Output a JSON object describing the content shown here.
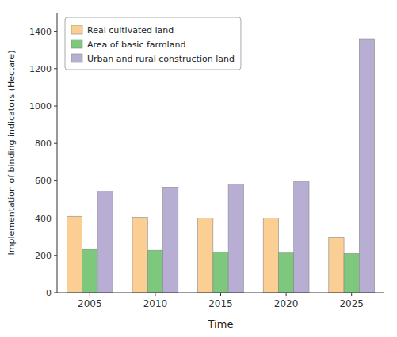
{
  "chart_data": {
    "type": "bar",
    "categories": [
      "2005",
      "2010",
      "2015",
      "2020",
      "2025"
    ],
    "series": [
      {
        "name": "Real cultivated land",
        "color": "#FBCF93",
        "values": [
          410,
          405,
          400,
          400,
          295
        ]
      },
      {
        "name": "Area of basic farmland",
        "color": "#7DC87D",
        "values": [
          232,
          228,
          218,
          213,
          210
        ]
      },
      {
        "name": "Urban and rural construction land",
        "color": "#B8AED4",
        "values": [
          545,
          562,
          583,
          595,
          1360
        ]
      }
    ],
    "xlabel": "Time",
    "ylabel": "Implementation of binding indicators (Hectare)",
    "ylim": [
      0,
      1500
    ],
    "yticks": [
      0,
      200,
      400,
      600,
      800,
      1000,
      1200,
      1400
    ],
    "grid": false,
    "legend": "upper left"
  }
}
